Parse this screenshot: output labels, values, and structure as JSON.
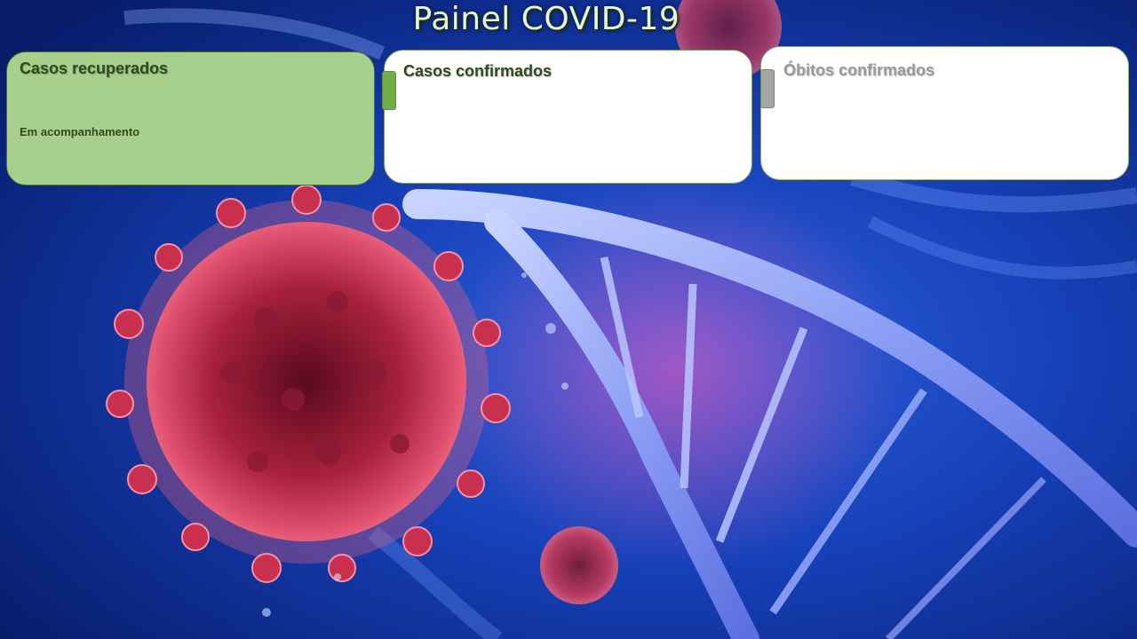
{
  "header": {
    "title": "Painel COVID-19"
  },
  "cards": {
    "recovered": {
      "title": "Casos recuperados",
      "subtitle": "Em acompanhamento"
    },
    "confirmed": {
      "title": "Casos confirmados"
    },
    "deaths": {
      "title": "Óbitos confirmados"
    }
  },
  "colors": {
    "recovered_card_bg": "#a8d08d",
    "confirmed_marker": "#70ad47",
    "deaths_marker": "#a5a5a5",
    "background": "#0b2a8a"
  },
  "background": {
    "icon": "virus-dna-illustration"
  }
}
